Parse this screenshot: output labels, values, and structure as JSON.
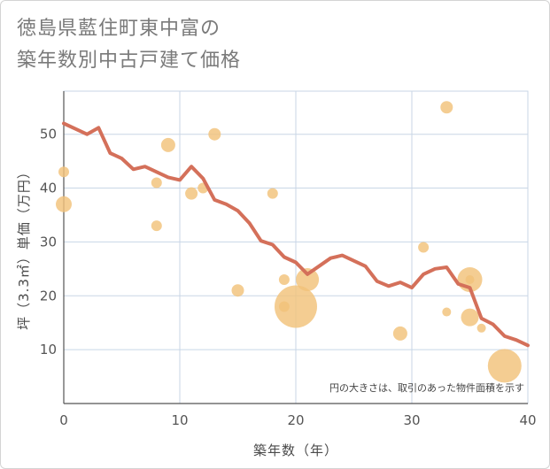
{
  "title_line1": "徳島県藍住町東中富の",
  "title_line2": "築年数別中古戸建て価格",
  "chart_data": {
    "type": "scatter",
    "title": "徳島県藍住町東中富の築年数別中古戸建て価格",
    "xlabel": "築年数（年）",
    "ylabel": "坪（3.3㎡）単価（万円）",
    "xlim": [
      0,
      40
    ],
    "ylim": [
      0,
      58
    ],
    "xticks": [
      0,
      10,
      20,
      30,
      40
    ],
    "yticks": [
      10,
      20,
      30,
      40,
      50
    ],
    "grid": true,
    "note": "円の大きさは、取引のあった物件面積を示す",
    "colors": {
      "bubble": "#f2c27a",
      "line": "#d4705a",
      "grid": "#c8d6e6"
    },
    "points": [
      {
        "x": 0,
        "y": 43,
        "size": 6
      },
      {
        "x": 0,
        "y": 37,
        "size": 9
      },
      {
        "x": 8,
        "y": 41,
        "size": 6
      },
      {
        "x": 8,
        "y": 33,
        "size": 6
      },
      {
        "x": 9,
        "y": 48,
        "size": 8
      },
      {
        "x": 11,
        "y": 39,
        "size": 7
      },
      {
        "x": 12,
        "y": 40,
        "size": 6
      },
      {
        "x": 13,
        "y": 50,
        "size": 7
      },
      {
        "x": 15,
        "y": 21,
        "size": 7
      },
      {
        "x": 18,
        "y": 39,
        "size": 6
      },
      {
        "x": 19,
        "y": 23,
        "size": 6
      },
      {
        "x": 19,
        "y": 18,
        "size": 6
      },
      {
        "x": 20,
        "y": 18,
        "size": 24
      },
      {
        "x": 21,
        "y": 23,
        "size": 13
      },
      {
        "x": 29,
        "y": 13,
        "size": 8
      },
      {
        "x": 31,
        "y": 29,
        "size": 6
      },
      {
        "x": 33,
        "y": 55,
        "size": 7
      },
      {
        "x": 33,
        "y": 17,
        "size": 5
      },
      {
        "x": 35,
        "y": 23,
        "size": 14
      },
      {
        "x": 35,
        "y": 23,
        "size": 5
      },
      {
        "x": 35,
        "y": 16,
        "size": 10
      },
      {
        "x": 36,
        "y": 14,
        "size": 5
      },
      {
        "x": 38,
        "y": 7,
        "size": 19
      }
    ],
    "trend": {
      "x": [
        0,
        1,
        2,
        3,
        4,
        5,
        6,
        7,
        8,
        9,
        10,
        11,
        12,
        13,
        14,
        15,
        16,
        17,
        18,
        19,
        20,
        21,
        22,
        23,
        24,
        25,
        26,
        27,
        28,
        29,
        30,
        31,
        32,
        33,
        34,
        35,
        36,
        37,
        38,
        39,
        40
      ],
      "y": [
        52,
        51,
        50,
        51.2,
        46.5,
        45.5,
        43.5,
        44,
        43,
        42,
        41.5,
        44,
        41.8,
        37.8,
        37,
        35.8,
        33.5,
        30.2,
        29.5,
        27.2,
        26.2,
        24,
        25.5,
        27,
        27.5,
        26.5,
        25.5,
        22.7,
        21.8,
        22.5,
        21.5,
        24,
        25,
        25.3,
        22.2,
        21.5,
        15.8,
        14.7,
        12.5,
        11.8,
        10.8
      ]
    }
  }
}
